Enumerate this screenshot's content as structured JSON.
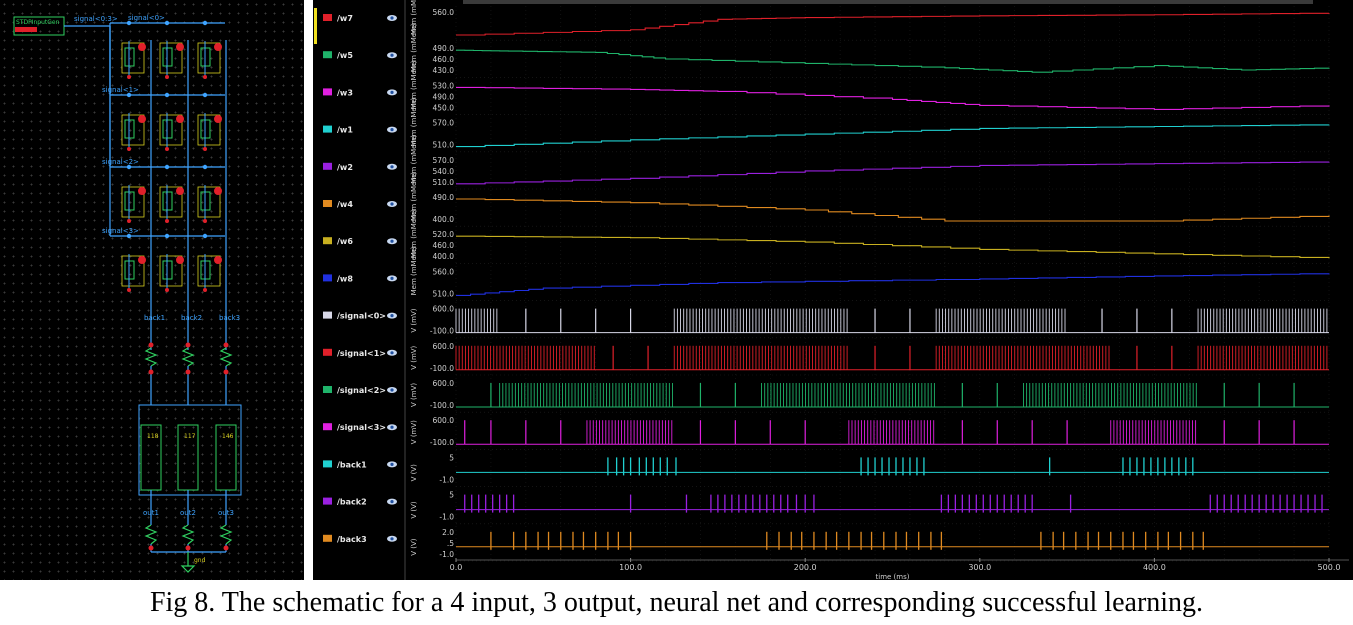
{
  "schematic": {
    "input_block_label": "STDPInputGen",
    "bus_label": "signal<0:3>",
    "row_labels": [
      "signal<0>",
      "signal<1>",
      "signal<2>",
      "signal<3>"
    ],
    "back_labels": [
      "back1",
      "back2",
      "back3"
    ],
    "out_labels": [
      "out1",
      "out2",
      "out3"
    ],
    "neuron_ids": [
      "118",
      "117",
      "146"
    ],
    "ground_label": "gnd"
  },
  "waveform": {
    "signals": [
      {
        "name": "/w7",
        "color": "#e0202a",
        "kind": "weight",
        "unit_label": "Mem (mMem)",
        "ticks": [
          "560.0"
        ]
      },
      {
        "name": "/w5",
        "color": "#1fb36a",
        "kind": "weight",
        "unit_label": "Mem (mMem)",
        "ticks": [
          "490.0",
          "460.0",
          "430.0"
        ]
      },
      {
        "name": "/w3",
        "color": "#e020e0",
        "kind": "weight",
        "unit_label": "Mem (mMem)",
        "ticks": [
          "530.0",
          "490.0",
          "450.0"
        ]
      },
      {
        "name": "/w1",
        "color": "#20d0d0",
        "kind": "weight",
        "unit_label": "Mem (mMem)",
        "ticks": [
          "570.0",
          "510.0"
        ]
      },
      {
        "name": "/w2",
        "color": "#9a20e0",
        "kind": "weight",
        "unit_label": "Mem (mMem)",
        "ticks": [
          "570.0",
          "540.0",
          "510.0"
        ]
      },
      {
        "name": "/w4",
        "color": "#e08a20",
        "kind": "weight",
        "unit_label": "Mem (mMem)",
        "ticks": [
          "490.0",
          "400.0"
        ]
      },
      {
        "name": "/w6",
        "color": "#c8b020",
        "kind": "weight",
        "unit_label": "Mem (mMem)",
        "ticks": [
          "520.0",
          "460.0",
          "400.0"
        ]
      },
      {
        "name": "/w8",
        "color": "#2030e0",
        "kind": "weight",
        "unit_label": "Mem (mMem)",
        "ticks": [
          "560.0",
          "510.0"
        ]
      },
      {
        "name": "/signal<0>",
        "color": "#d8d8e8",
        "kind": "spike",
        "unit_label": "V (mV)",
        "ticks": [
          "600.0",
          "-100.0"
        ]
      },
      {
        "name": "/signal<1>",
        "color": "#e0202a",
        "kind": "spike",
        "unit_label": "V (mV)",
        "ticks": [
          "600.0",
          "-100.0"
        ]
      },
      {
        "name": "/signal<2>",
        "color": "#1fb36a",
        "kind": "spike",
        "unit_label": "V (mV)",
        "ticks": [
          "600.0",
          "-100.0"
        ]
      },
      {
        "name": "/signal<3>",
        "color": "#e020e0",
        "kind": "spike",
        "unit_label": "V (mV)",
        "ticks": [
          "600.0",
          "-100.0"
        ]
      },
      {
        "name": "/back1",
        "color": "#20d0d0",
        "kind": "pulse",
        "unit_label": "V (V)",
        "ticks": [
          "5",
          "-1.0"
        ]
      },
      {
        "name": "/back2",
        "color": "#9a20e0",
        "kind": "pulse",
        "unit_label": "V (V)",
        "ticks": [
          "5",
          "-1.0"
        ]
      },
      {
        "name": "/back3",
        "color": "#e08a20",
        "kind": "pulse",
        "unit_label": "V (V)",
        "ticks": [
          "2.0",
          ".5",
          "-1.0"
        ]
      }
    ]
  },
  "chart_data": {
    "type": "line",
    "xlabel": "time (ms)",
    "xlim": [
      0,
      500
    ],
    "x_ticks": [
      "0.0",
      "100.0",
      "200.0",
      "300.0",
      "400.0",
      "500.0"
    ],
    "series": [
      {
        "name": "/w7",
        "x": [
          0,
          100,
          150,
          200,
          300,
          400,
          500
        ],
        "values": [
          505,
          520,
          550,
          555,
          560,
          563,
          568
        ]
      },
      {
        "name": "/w5",
        "x": [
          0,
          30,
          80,
          120,
          200,
          280,
          330,
          400,
          450,
          500
        ],
        "values": [
          490,
          488,
          485,
          470,
          460,
          450,
          440,
          455,
          445,
          450
        ]
      },
      {
        "name": "/w3",
        "x": [
          0,
          100,
          150,
          250,
          300,
          400,
          500
        ],
        "values": [
          525,
          520,
          515,
          495,
          480,
          470,
          480
        ]
      },
      {
        "name": "/w1",
        "x": [
          0,
          100,
          200,
          300,
          400,
          500
        ],
        "values": [
          512,
          530,
          545,
          560,
          565,
          570
        ]
      },
      {
        "name": "/w2",
        "x": [
          0,
          100,
          200,
          300,
          400,
          500
        ],
        "values": [
          510,
          525,
          545,
          560,
          565,
          570
        ]
      },
      {
        "name": "/w4",
        "x": [
          0,
          100,
          200,
          280,
          400,
          500
        ],
        "values": [
          490,
          480,
          460,
          430,
          430,
          445
        ]
      },
      {
        "name": "/w6",
        "x": [
          0,
          100,
          200,
          300,
          400,
          500
        ],
        "values": [
          500,
          495,
          480,
          455,
          440,
          425
        ]
      },
      {
        "name": "/w8",
        "x": [
          0,
          50,
          150,
          300,
          400,
          500
        ],
        "values": [
          505,
          525,
          540,
          550,
          558,
          565
        ]
      }
    ],
    "spike_trains": [
      {
        "name": "/signal<0>",
        "bursts": [
          [
            0,
            25
          ],
          [
            125,
            225
          ],
          [
            275,
            350
          ],
          [
            425,
            500
          ]
        ],
        "isolated": [
          40,
          60,
          80,
          100,
          240,
          260,
          370,
          390,
          410
        ]
      },
      {
        "name": "/signal<1>",
        "bursts": [
          [
            0,
            80
          ],
          [
            125,
            225
          ],
          [
            275,
            375
          ],
          [
            425,
            500
          ]
        ],
        "isolated": [
          90,
          110,
          240,
          260,
          390,
          410
        ]
      },
      {
        "name": "/signal<2>",
        "bursts": [
          [
            25,
            125
          ],
          [
            175,
            275
          ],
          [
            325,
            425
          ]
        ],
        "isolated": [
          20,
          140,
          160,
          290,
          310,
          440,
          460,
          480
        ]
      },
      {
        "name": "/signal<3>",
        "bursts": [
          [
            75,
            125
          ],
          [
            225,
            275
          ],
          [
            375,
            425
          ]
        ],
        "isolated": [
          5,
          20,
          40,
          60,
          140,
          160,
          180,
          200,
          290,
          310,
          330,
          350,
          440,
          460,
          480
        ]
      }
    ],
    "pulse_trains": [
      {
        "name": "/back1",
        "times": [
          87,
          92,
          96,
          100,
          105,
          109,
          113,
          117,
          121,
          126,
          232,
          236,
          240,
          244,
          248,
          252,
          256,
          260,
          264,
          268,
          340,
          382,
          386,
          390,
          394,
          398,
          402,
          406,
          410,
          414,
          418,
          422
        ]
      },
      {
        "name": "/back2",
        "times": [
          5,
          9,
          13,
          17,
          21,
          25,
          29,
          33,
          100,
          132,
          146,
          150,
          154,
          158,
          162,
          166,
          170,
          174,
          178,
          182,
          186,
          190,
          195,
          200,
          205,
          278,
          282,
          286,
          290,
          294,
          298,
          302,
          306,
          310,
          314,
          318,
          322,
          326,
          330,
          352,
          432,
          436,
          440,
          444,
          448,
          452,
          456,
          460,
          464,
          468,
          472,
          476,
          480,
          484,
          488,
          492,
          496
        ]
      },
      {
        "name": "/back3",
        "times": [
          20,
          33,
          40,
          47,
          53,
          60,
          67,
          73,
          80,
          87,
          93,
          100,
          178,
          185,
          192,
          198,
          205,
          212,
          218,
          225,
          232,
          238,
          245,
          252,
          258,
          265,
          272,
          278,
          335,
          342,
          348,
          355,
          362,
          368,
          375,
          382,
          388,
          395,
          402,
          408,
          415,
          422,
          428
        ]
      }
    ]
  },
  "caption": "Fig 8. The schematic for a 4 input, 3 output, neural net and corresponding successful learning."
}
